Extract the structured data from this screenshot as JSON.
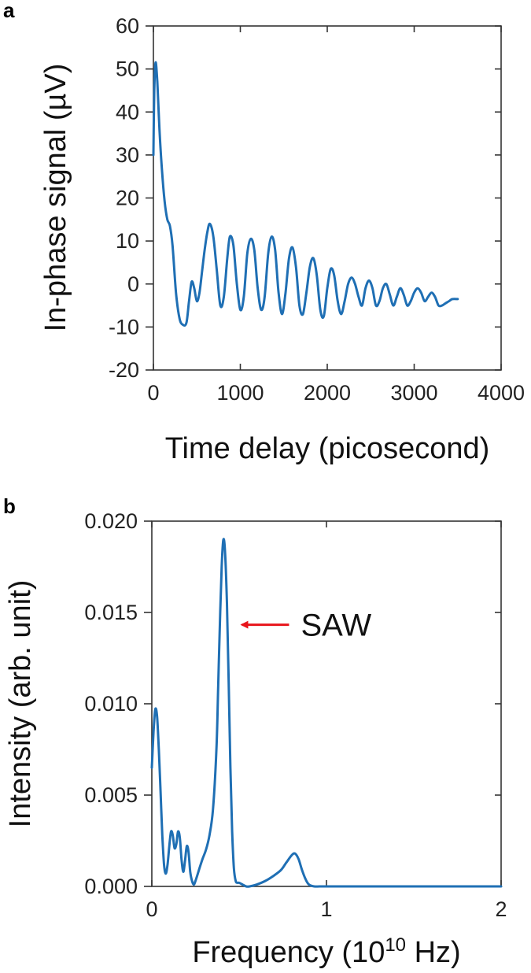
{
  "colors": {
    "series": "#1f6fb4",
    "annotation_arrow": "#e8141b",
    "axis": "#333333"
  },
  "chart_data": [
    {
      "panel_label": "a",
      "type": "line",
      "xlabel": "Time delay (picosecond)",
      "ylabel": "In-phase signal (µV)",
      "xlim": [
        0,
        4000
      ],
      "ylim": [
        -20,
        60
      ],
      "xticks": [
        0,
        1000,
        2000,
        3000,
        4000
      ],
      "yticks": [
        -20,
        -10,
        0,
        10,
        20,
        30,
        40,
        50,
        60
      ],
      "xtick_labels": [
        "0",
        "1000",
        "2000",
        "3000",
        "4000"
      ],
      "ytick_labels": [
        "-20",
        "-10",
        "0",
        "10",
        "20",
        "30",
        "40",
        "50",
        "60"
      ],
      "grid": false,
      "series": [
        {
          "x": [
            0,
            10,
            25,
            45,
            70,
            100,
            130,
            160,
            190,
            220,
            260,
            300,
            340,
            380,
            410,
            440,
            470,
            500,
            530,
            560,
            590,
            620,
            650,
            690,
            730,
            770,
            810,
            850,
            880,
            920,
            960,
            1000,
            1040,
            1080,
            1120,
            1160,
            1200,
            1240,
            1280,
            1320,
            1360,
            1400,
            1440,
            1480,
            1520,
            1560,
            1600,
            1640,
            1680,
            1720,
            1760,
            1800,
            1840,
            1880,
            1920,
            1960,
            2000,
            2040,
            2080,
            2120,
            2160,
            2200,
            2240,
            2280,
            2320,
            2360,
            2400,
            2440,
            2480,
            2520,
            2560,
            2600,
            2640,
            2680,
            2720,
            2760,
            2800,
            2840,
            2880,
            2920,
            2960,
            3000,
            3040,
            3080,
            3120,
            3160,
            3200,
            3240,
            3280,
            3320,
            3360,
            3400,
            3440,
            3500
          ],
          "y": [
            30,
            45,
            51.5,
            47,
            36,
            26,
            19,
            15,
            13.5,
            9,
            -2,
            -8,
            -9.5,
            -9,
            -4,
            0.5,
            -1,
            -4,
            -2,
            3,
            8,
            12,
            14,
            11,
            3,
            -5,
            -3,
            6,
            11,
            9,
            0,
            -6,
            -3,
            7,
            10.5,
            8,
            -1,
            -6,
            -3,
            7,
            11,
            8,
            -2,
            -7,
            -2,
            6,
            8.5,
            4,
            -5,
            -7,
            -2,
            4,
            6,
            2,
            -6,
            -7.5,
            -1,
            3.5,
            2,
            -4,
            -7,
            -4,
            0,
            1.5,
            0,
            -3,
            -5,
            -1,
            0.8,
            -1,
            -5,
            -4,
            -1,
            0,
            -2.5,
            -5,
            -3,
            -1,
            -2.5,
            -5,
            -4,
            -2,
            -1,
            -2,
            -4,
            -3,
            -2,
            -3,
            -5,
            -5,
            -4.5,
            -4,
            -3.5,
            -3.5
          ]
        }
      ]
    },
    {
      "panel_label": "b",
      "type": "line",
      "xlabel": "Frequency (10",
      "xlabel_sup": "10",
      "xlabel_suffix": " Hz)",
      "ylabel": "Intensity  (arb. unit)",
      "xlim": [
        0,
        2
      ],
      "ylim": [
        0,
        0.02
      ],
      "xticks": [
        0,
        1,
        2
      ],
      "yticks": [
        0,
        0.005,
        0.01,
        0.015,
        0.02
      ],
      "xtick_labels": [
        "0",
        "1",
        "2"
      ],
      "ytick_labels": [
        "0.000",
        "0.005",
        "0.010",
        "0.015",
        "0.020"
      ],
      "grid": false,
      "series": [
        {
          "x": [
            0,
            0.01,
            0.02,
            0.03,
            0.04,
            0.05,
            0.06,
            0.07,
            0.08,
            0.09,
            0.1,
            0.11,
            0.12,
            0.13,
            0.14,
            0.15,
            0.16,
            0.17,
            0.18,
            0.19,
            0.2,
            0.21,
            0.22,
            0.23,
            0.24,
            0.25,
            0.27,
            0.29,
            0.31,
            0.33,
            0.35,
            0.37,
            0.38,
            0.39,
            0.4,
            0.41,
            0.42,
            0.43,
            0.44,
            0.45,
            0.46,
            0.47,
            0.48,
            0.49,
            0.5,
            0.52,
            0.54,
            0.56,
            0.6,
            0.65,
            0.7,
            0.74,
            0.77,
            0.8,
            0.82,
            0.84,
            0.86,
            0.88,
            0.9,
            0.93,
            0.96,
            1.0,
            1.2,
            1.4,
            1.6,
            1.8,
            2.0
          ],
          "y": [
            0.0065,
            0.0085,
            0.0097,
            0.0093,
            0.0075,
            0.0052,
            0.0028,
            0.0012,
            0.0007,
            0.0012,
            0.0022,
            0.003,
            0.0028,
            0.0021,
            0.0023,
            0.003,
            0.0027,
            0.0015,
            0.0008,
            0.0014,
            0.0022,
            0.0019,
            0.0008,
            0.0003,
            0.0001,
            0.0003,
            0.0009,
            0.0015,
            0.002,
            0.0028,
            0.0042,
            0.0075,
            0.011,
            0.0145,
            0.0175,
            0.019,
            0.0182,
            0.0155,
            0.0112,
            0.0065,
            0.003,
            0.001,
            0.0003,
            0.0002,
            0.0002,
            0.0001,
            0.0,
            0.0,
            0.0001,
            0.0003,
            0.0006,
            0.0009,
            0.0013,
            0.0017,
            0.0018,
            0.0015,
            0.0009,
            0.0004,
            0.0001,
            0.0,
            0.0,
            0.0,
            0.0,
            0.0,
            0.0,
            0.0,
            0.0
          ]
        }
      ],
      "annotation": {
        "text": "SAW",
        "point_x": 0.52,
        "point_y": 0.0145
      }
    }
  ]
}
